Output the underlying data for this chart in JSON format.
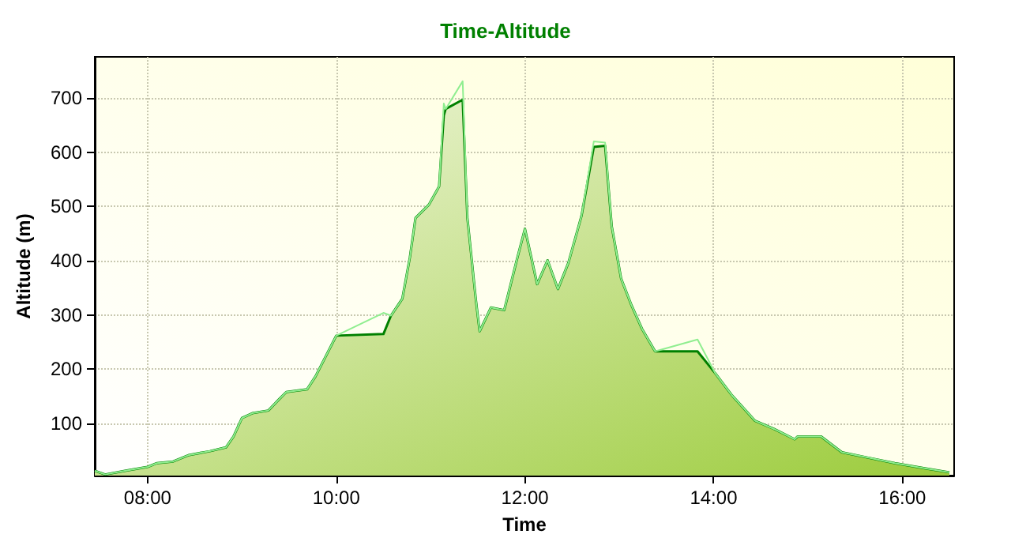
{
  "chart_data": {
    "type": "area",
    "title": "Time-Altitude",
    "xlabel": "Time",
    "ylabel": "Altitude (m)",
    "x": [
      7.44,
      7.55,
      7.77,
      8.0,
      8.1,
      8.27,
      8.44,
      8.66,
      8.83,
      8.91,
      9.0,
      9.11,
      9.28,
      9.39,
      9.47,
      9.69,
      9.78,
      10.0,
      10.5,
      10.58,
      10.7,
      10.78,
      10.84,
      10.98,
      11.09,
      11.14,
      11.16,
      11.34,
      11.39,
      11.48,
      11.52,
      11.64,
      11.78,
      11.92,
      12.0,
      12.13,
      12.24,
      12.35,
      12.46,
      12.6,
      12.73,
      12.85,
      12.92,
      13.02,
      13.13,
      13.24,
      13.38,
      13.83,
      14.02,
      14.19,
      14.44,
      14.64,
      14.86,
      14.89,
      15.14,
      15.36,
      15.64,
      15.92,
      16.25,
      16.5
    ],
    "series": [
      {
        "type": "area",
        "color": "#008000",
        "values": [
          13,
          6,
          13,
          20,
          27,
          30,
          42,
          49,
          56,
          76,
          110,
          119,
          124,
          144,
          158,
          163,
          187,
          262,
          265,
          299,
          330,
          406,
          479,
          503,
          537,
          668,
          680,
          697,
          479,
          328,
          270,
          314,
          309,
          406,
          459,
          357,
          401,
          348,
          396,
          483,
          610,
          612,
          464,
          367,
          318,
          275,
          233,
          233,
          192,
          153,
          105,
          90,
          71,
          76,
          76,
          47,
          37,
          27,
          17,
          10
        ]
      },
      {
        "type": "line",
        "color": "#90ee90",
        "values": [
          13,
          6,
          13,
          20,
          27,
          30,
          42,
          49,
          56,
          76,
          110,
          119,
          124,
          144,
          158,
          163,
          187,
          262,
          304,
          299,
          330,
          406,
          479,
          503,
          537,
          690,
          680,
          731,
          479,
          328,
          270,
          314,
          309,
          406,
          459,
          357,
          401,
          348,
          396,
          483,
          620,
          618,
          464,
          367,
          318,
          275,
          233,
          255,
          192,
          153,
          105,
          90,
          71,
          76,
          76,
          47,
          37,
          27,
          17,
          10
        ]
      }
    ],
    "xlim": [
      7.44,
      16.55
    ],
    "xticks": [
      {
        "value": 8,
        "label": "08:00"
      },
      {
        "value": 10,
        "label": "10:00"
      },
      {
        "value": 12,
        "label": "12:00"
      },
      {
        "value": 14,
        "label": "14:00"
      },
      {
        "value": 16,
        "label": "16:00"
      }
    ],
    "ylim": [
      4,
      776
    ],
    "yticks": [
      100,
      200,
      300,
      400,
      500,
      600,
      700
    ],
    "grid": true,
    "marker": "none",
    "line_style": "solid"
  }
}
